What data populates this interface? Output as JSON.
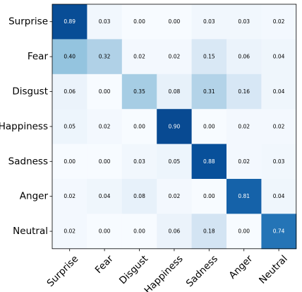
{
  "chart_data": {
    "type": "heatmap",
    "title": "",
    "xlabel": "",
    "ylabel": "",
    "colormap": "Blues",
    "value_range": [
      0,
      1
    ],
    "rows": [
      "Surprise",
      "Fear",
      "Disgust",
      "Happiness",
      "Sadness",
      "Anger",
      "Neutral"
    ],
    "columns": [
      "Surprise",
      "Fear",
      "Disgust",
      "Happiness",
      "Sadness",
      "Anger",
      "Neutral"
    ],
    "values": [
      [
        0.89,
        0.03,
        0.0,
        0.0,
        0.03,
        0.03,
        0.02
      ],
      [
        0.4,
        0.32,
        0.02,
        0.02,
        0.15,
        0.06,
        0.04
      ],
      [
        0.06,
        0.0,
        0.35,
        0.08,
        0.31,
        0.16,
        0.04
      ],
      [
        0.05,
        0.02,
        0.0,
        0.9,
        0.0,
        0.02,
        0.02
      ],
      [
        0.0,
        0.0,
        0.03,
        0.05,
        0.88,
        0.02,
        0.03
      ],
      [
        0.02,
        0.04,
        0.08,
        0.02,
        0.0,
        0.81,
        0.04
      ],
      [
        0.02,
        0.0,
        0.0,
        0.06,
        0.18,
        0.0,
        0.74
      ]
    ],
    "value_format": "2 decimals"
  }
}
